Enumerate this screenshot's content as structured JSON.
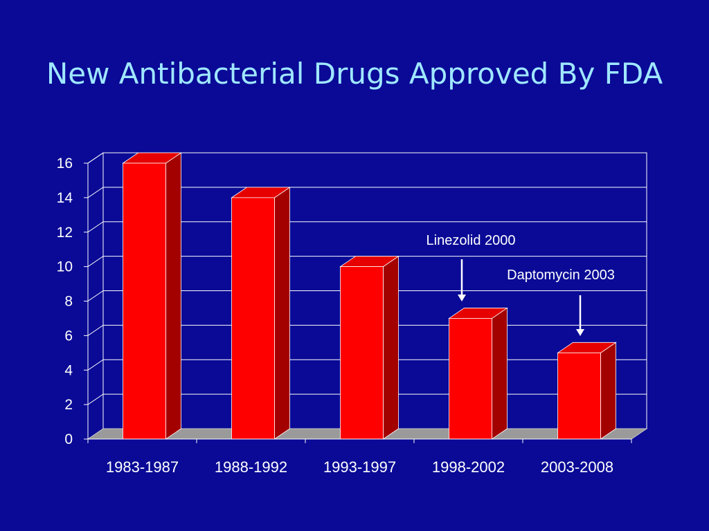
{
  "title": "New Antibacterial Drugs Approved By FDA",
  "colors": {
    "background": "#0a0a96",
    "title": "#9fe7ff",
    "bar_front": "#ff0000",
    "bar_side": "#a30000",
    "bar_top": "#e60000",
    "floor": "#9a9a9a",
    "grid": "#ffffff"
  },
  "chart_data": {
    "type": "bar",
    "categories": [
      "1983-1987",
      "1988-1992",
      "1993-1997",
      "1998-2002",
      "2003-2008"
    ],
    "values": [
      16,
      14,
      10,
      7,
      5
    ],
    "ylim": [
      0,
      16
    ],
    "yticks": [
      "0",
      "2",
      "4",
      "6",
      "8",
      "10",
      "12",
      "14",
      "16"
    ],
    "grid": true,
    "style": "3d-columns",
    "annotations": [
      {
        "text": "Linezolid 2000",
        "category": "1998-2002"
      },
      {
        "text": "Daptomycin 2003",
        "category": "2003-2008"
      }
    ]
  }
}
